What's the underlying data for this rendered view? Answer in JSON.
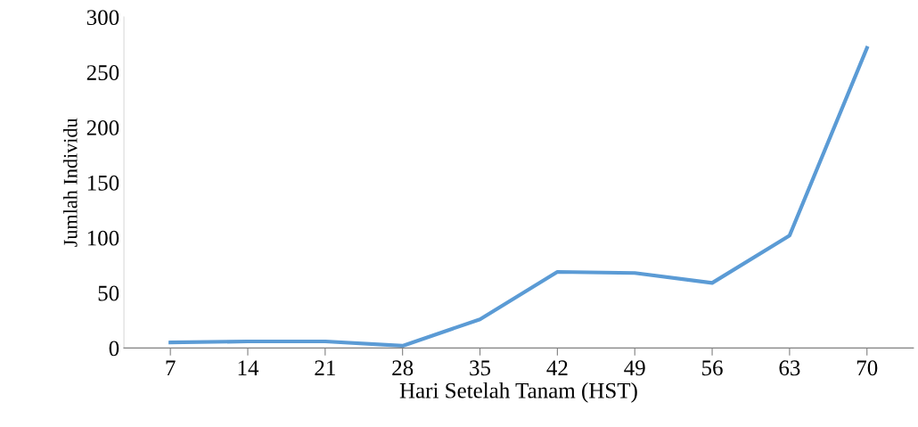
{
  "chart_data": {
    "type": "line",
    "xlabel": "Hari Setelah Tanam (HST)",
    "ylabel": "Jumlah Individu",
    "categories": [
      "7",
      "14",
      "21",
      "28",
      "35",
      "42",
      "49",
      "56",
      "63",
      "70"
    ],
    "series": [
      {
        "color": "#5b9bd5",
        "values": [
          5,
          6,
          6,
          2,
          26,
          69,
          68,
          59,
          102,
          272
        ]
      }
    ],
    "ylim": [
      0,
      300
    ],
    "yticks": [
      0,
      50,
      100,
      150,
      200,
      250,
      300
    ],
    "grid": false,
    "legend": false,
    "marker": "none",
    "line_style": "solid"
  }
}
